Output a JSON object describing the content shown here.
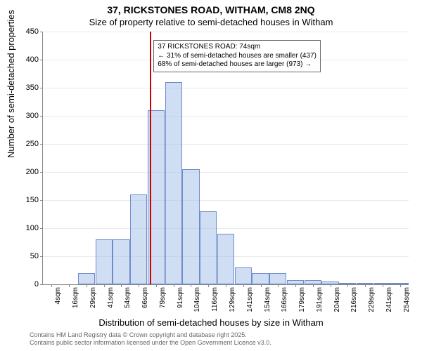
{
  "chart": {
    "type": "histogram",
    "title_main": "37, RICKSTONES ROAD, WITHAM, CM8 2NQ",
    "title_sub": "Size of property relative to semi-detached houses in Witham",
    "xlabel": "Distribution of semi-detached houses by size in Witham",
    "ylabel": "Number of semi-detached properties",
    "ylim": [
      0,
      450
    ],
    "ytick_step": 50,
    "yticks": [
      0,
      50,
      100,
      150,
      200,
      250,
      300,
      350,
      400,
      450
    ],
    "x_categories": [
      "4sqm",
      "16sqm",
      "29sqm",
      "41sqm",
      "54sqm",
      "66sqm",
      "79sqm",
      "91sqm",
      "104sqm",
      "116sqm",
      "129sqm",
      "141sqm",
      "154sqm",
      "166sqm",
      "179sqm",
      "191sqm",
      "204sqm",
      "216sqm",
      "229sqm",
      "241sqm",
      "254sqm"
    ],
    "values": [
      0,
      0,
      20,
      80,
      80,
      160,
      310,
      360,
      205,
      130,
      90,
      30,
      20,
      20,
      8,
      8,
      5,
      3,
      2,
      2,
      1
    ],
    "bar_fill": "rgba(170,195,235,0.55)",
    "bar_stroke": "rgba(100,130,200,0.9)",
    "grid_color": "#e9e9e9",
    "axis_color": "#888888",
    "background_color": "#ffffff",
    "title_fontsize": 14,
    "subtitle_fontsize": 13,
    "label_fontsize": 13,
    "tick_fontsize": 11,
    "reference_line": {
      "x_index_between": [
        5,
        6
      ],
      "fraction": 0.65,
      "color": "#cc0000",
      "width": 2
    },
    "annotation": {
      "line1": "37 RICKSTONES ROAD: 74sqm",
      "line2": "← 31% of semi-detached houses are smaller (437)",
      "line3": "68% of semi-detached houses are larger (973) →",
      "border_color": "#666666",
      "background": "#ffffff",
      "fontsize": 10
    },
    "footer": {
      "line1": "Contains HM Land Registry data © Crown copyright and database right 2025.",
      "line2": "Contains public sector information licensed under the Open Government Licence v3.0.",
      "color": "#666666",
      "fontsize": 9
    }
  }
}
